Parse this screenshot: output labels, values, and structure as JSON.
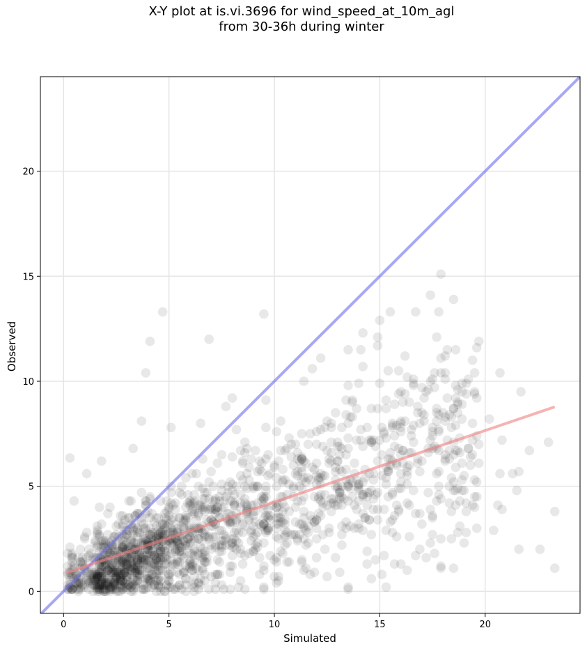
{
  "chart_data": {
    "type": "scatter",
    "title_line1": "X-Y plot at is.vi.3696 for wind_speed_at_10m_agl",
    "title_line2": "from 30-36h during winter",
    "xlabel": "Simulated",
    "ylabel": "Observed",
    "xlim": [
      -1.1,
      24.5
    ],
    "ylim": [
      -1.05,
      24.5
    ],
    "xticks": [
      0,
      5,
      10,
      15,
      20
    ],
    "yticks": [
      0,
      5,
      10,
      15,
      20
    ],
    "grid": true,
    "legend": "none",
    "colors": {
      "points": "#000000",
      "identity_line": "#6a6ef0",
      "fit_line": "#f08080",
      "grid": "#e5e5e5"
    },
    "reference_lines": [
      {
        "role": "identity",
        "x": [
          -1.1,
          24.5
        ],
        "y": [
          -1.1,
          24.5
        ]
      },
      {
        "role": "fit",
        "x": [
          0.1,
          23.3
        ],
        "y": [
          0.87,
          8.78
        ]
      }
    ],
    "point_count": 1700,
    "points_sample": [
      [
        0.3,
        6.35
      ],
      [
        4.7,
        13.3
      ],
      [
        9.5,
        13.2
      ],
      [
        6.9,
        12.0
      ],
      [
        4.1,
        11.9
      ],
      [
        3.9,
        10.4
      ],
      [
        3.7,
        8.1
      ],
      [
        17.9,
        15.1
      ],
      [
        17.4,
        14.1
      ],
      [
        16.7,
        13.3
      ],
      [
        17.8,
        13.3
      ],
      [
        18.5,
        13.9
      ],
      [
        15.5,
        13.3
      ],
      [
        15.0,
        12.9
      ],
      [
        14.9,
        12.1
      ],
      [
        17.7,
        12.1
      ],
      [
        14.2,
        12.3
      ],
      [
        13.5,
        11.5
      ],
      [
        14.1,
        11.5
      ],
      [
        12.2,
        11.1
      ],
      [
        14.2,
        10.7
      ],
      [
        20.7,
        10.4
      ],
      [
        11.4,
        10.0
      ],
      [
        19.2,
        10.1
      ],
      [
        21.7,
        9.5
      ],
      [
        20.2,
        8.2
      ],
      [
        20.8,
        7.2
      ],
      [
        23.0,
        7.1
      ],
      [
        22.1,
        6.7
      ],
      [
        20.7,
        5.6
      ],
      [
        21.3,
        5.6
      ],
      [
        21.6,
        5.7
      ],
      [
        21.5,
        4.8
      ],
      [
        20.6,
        4.1
      ],
      [
        20.8,
        3.9
      ],
      [
        23.3,
        3.8
      ],
      [
        19.6,
        3.0
      ],
      [
        20.4,
        2.9
      ],
      [
        21.6,
        2.0
      ],
      [
        22.6,
        2.0
      ],
      [
        23.3,
        1.1
      ],
      [
        18.5,
        1.1
      ],
      [
        13.5,
        0.2
      ],
      [
        1.8,
        6.2
      ],
      [
        1.1,
        5.6
      ],
      [
        0.5,
        4.3
      ],
      [
        3.3,
        6.8
      ],
      [
        8.0,
        9.2
      ],
      [
        9.6,
        9.1
      ],
      [
        16.0,
        9.5
      ],
      [
        17.6,
        9.7
      ],
      [
        18.7,
        9.0
      ],
      [
        5.1,
        7.8
      ],
      [
        6.5,
        8.0
      ]
    ]
  }
}
